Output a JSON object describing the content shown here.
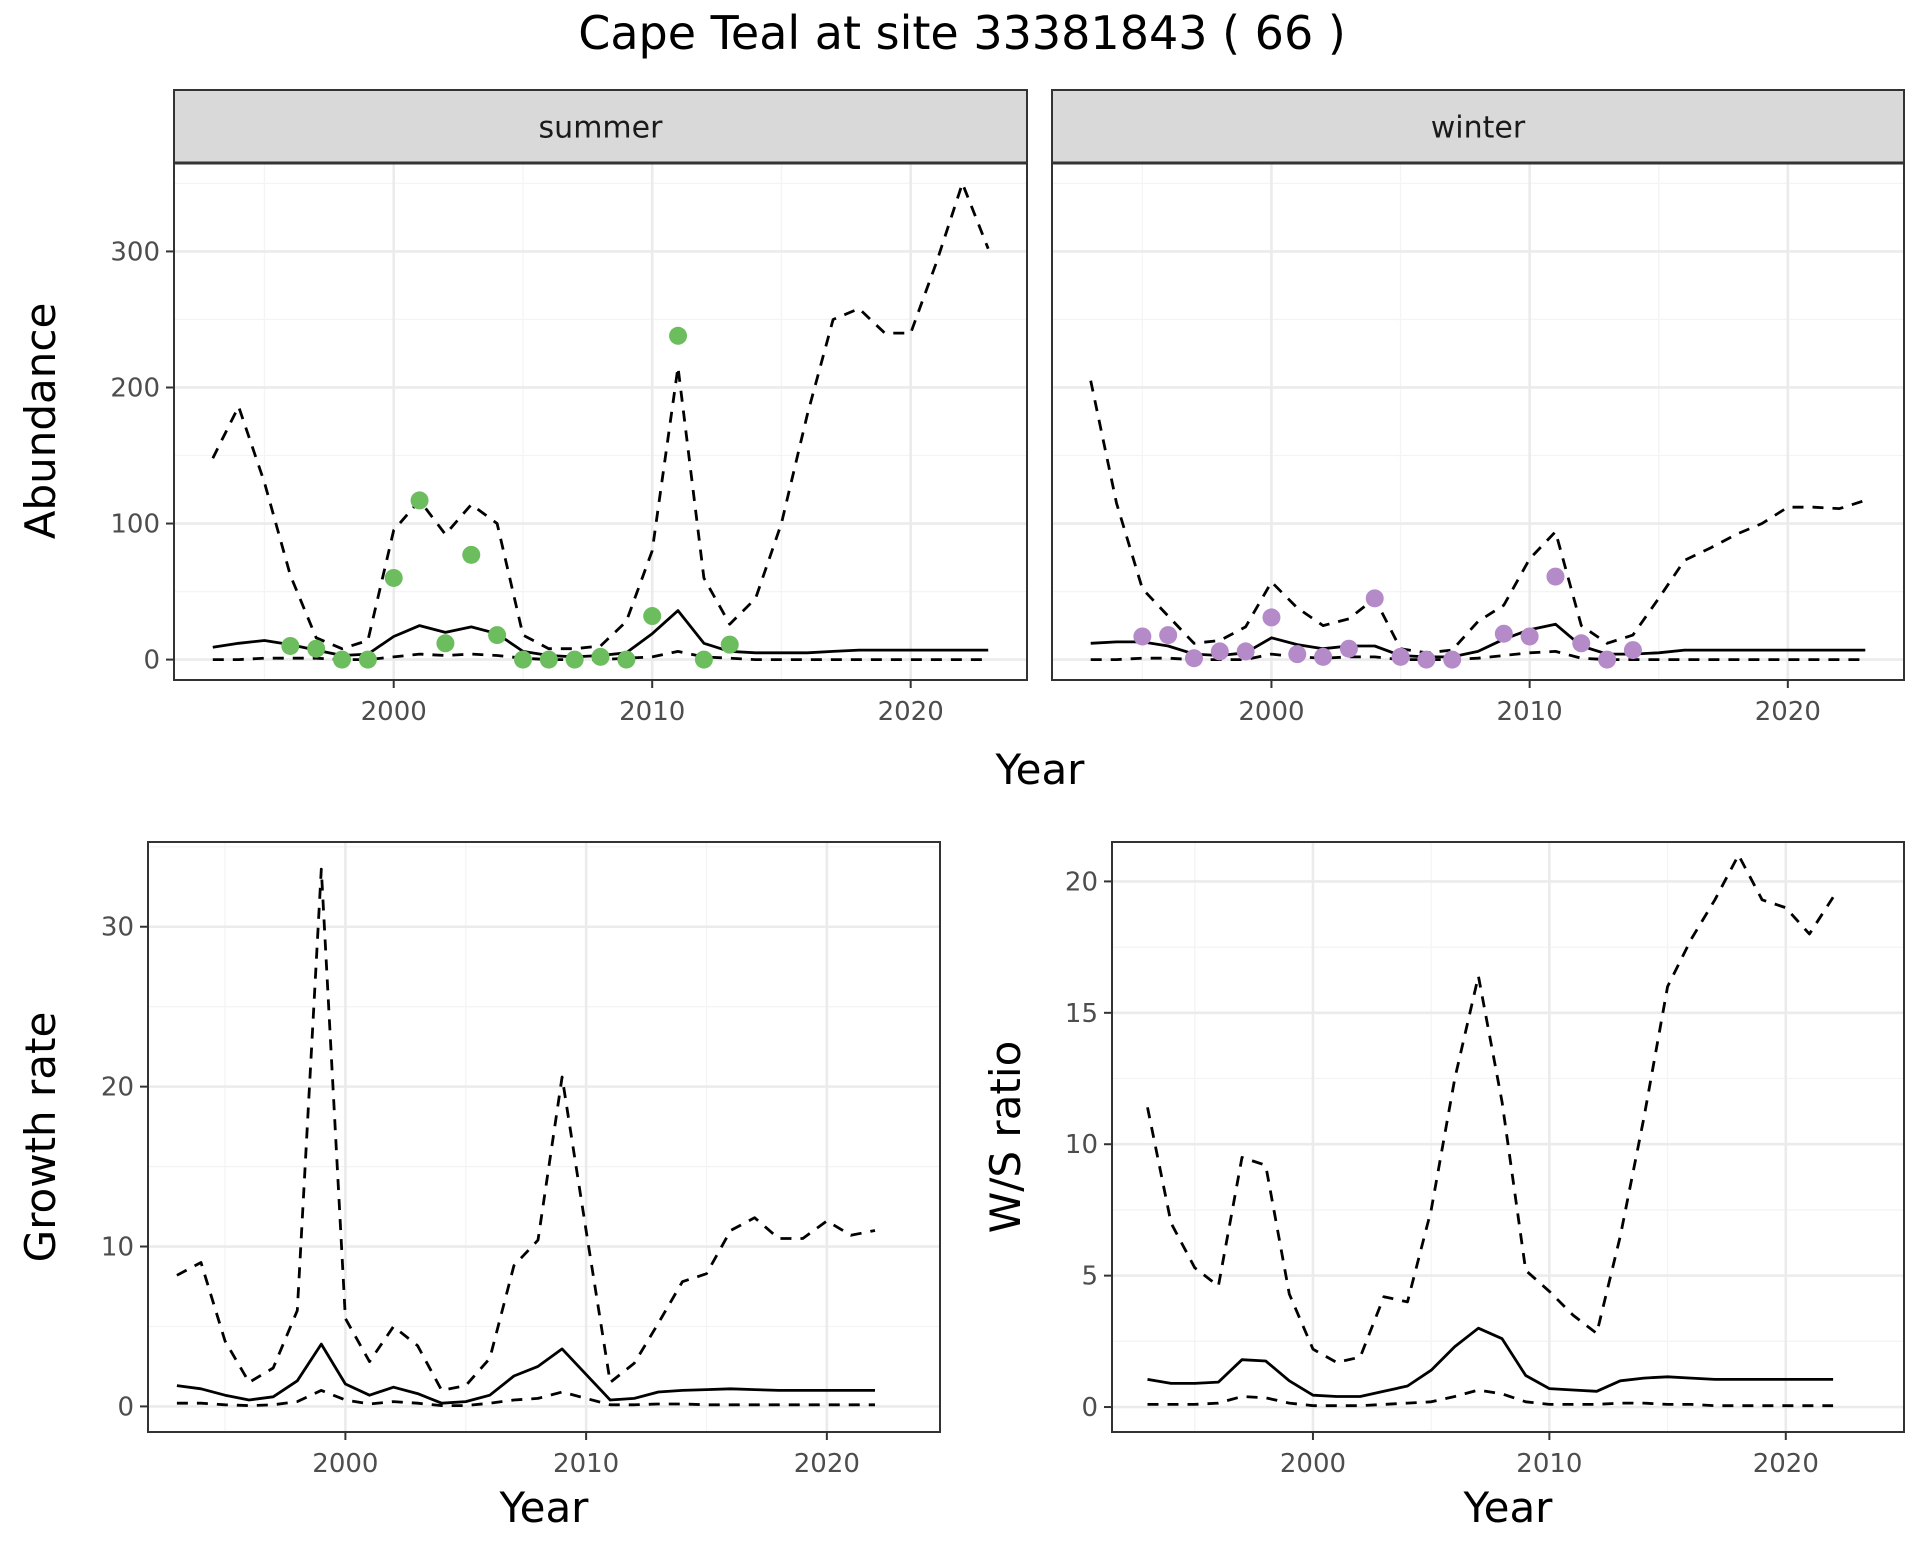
{
  "title": "Cape Teal at site 33381843 ( 66 )",
  "colors": {
    "summer_points": "#6cbd5d",
    "winter_points": "#b48ac8",
    "line": "#000000",
    "grid_major": "#ebebeb",
    "grid_minor": "#f4f4f4",
    "strip_bg": "#d9d9d9",
    "panel_border": "#333333"
  },
  "chart_data": [
    {
      "type": "line",
      "panel": "summer",
      "strip_label": "summer",
      "xlabel": "Year",
      "ylabel": "Abundance",
      "xlim": [
        1991.5,
        2024.5
      ],
      "ylim": [
        -15,
        365
      ],
      "xticks": [
        2000,
        2010,
        2020
      ],
      "yticks": [
        0,
        100,
        200,
        300
      ],
      "grid": true,
      "series": [
        {
          "style": "solid",
          "x": [
            1993,
            1994,
            1995,
            1996,
            1997,
            1998,
            1999,
            2000,
            2001,
            2002,
            2003,
            2004,
            2005,
            2006,
            2007,
            2008,
            2009,
            2010,
            2011,
            2012,
            2013,
            2014,
            2015,
            2016,
            2017,
            2018,
            2019,
            2020,
            2021,
            2022,
            2023
          ],
          "y": [
            9,
            12,
            14,
            11,
            7,
            3,
            4,
            17,
            25,
            20,
            24,
            19,
            6,
            3,
            2,
            3,
            5,
            19,
            36,
            12,
            6,
            5,
            5,
            5,
            6,
            7,
            7,
            7,
            7,
            7,
            7
          ]
        },
        {
          "style": "dashed",
          "x": [
            1993,
            1994,
            1995,
            1996,
            1997,
            1998,
            1999,
            2000,
            2001,
            2002,
            2003,
            2004,
            2005,
            2006,
            2007,
            2008,
            2009,
            2010,
            2011,
            2012,
            2013,
            2014,
            2015,
            2016,
            2017,
            2018,
            2019,
            2020,
            2021,
            2022,
            2023
          ],
          "y": [
            148,
            186,
            130,
            62,
            16,
            8,
            14,
            95,
            117,
            92,
            114,
            100,
            18,
            8,
            8,
            10,
            28,
            80,
            215,
            60,
            26,
            45,
            100,
            180,
            250,
            258,
            240,
            240,
            292,
            350,
            302
          ]
        },
        {
          "style": "dashed",
          "x": [
            1993,
            1994,
            1995,
            1996,
            1997,
            1998,
            1999,
            2000,
            2001,
            2002,
            2003,
            2004,
            2005,
            2006,
            2007,
            2008,
            2009,
            2010,
            2011,
            2012,
            2013,
            2014,
            2015,
            2016,
            2017,
            2018,
            2019,
            2020,
            2021,
            2022,
            2023
          ],
          "y": [
            0,
            0,
            1,
            1,
            1,
            0,
            0,
            2,
            4,
            3,
            4,
            3,
            1,
            0,
            0,
            0,
            1,
            2,
            6,
            2,
            1,
            0,
            0,
            0,
            0,
            0,
            0,
            0,
            0,
            0,
            0
          ]
        },
        {
          "style": "points",
          "x": [
            1996,
            1997,
            1998,
            1999,
            2000,
            2001,
            2002,
            2003,
            2004,
            2005,
            2006,
            2007,
            2008,
            2009,
            2010,
            2011,
            2012,
            2013
          ],
          "y": [
            10,
            8,
            0,
            0,
            60,
            117,
            12,
            77,
            18,
            0,
            0,
            0,
            2,
            0,
            32,
            238,
            0,
            11
          ]
        }
      ]
    },
    {
      "type": "line",
      "panel": "winter",
      "strip_label": "winter",
      "xlabel": "Year",
      "ylabel": "",
      "xlim": [
        1991.5,
        2024.5
      ],
      "ylim": [
        -15,
        365
      ],
      "xticks": [
        2000,
        2010,
        2020
      ],
      "yticks": [
        0,
        100,
        200,
        300
      ],
      "grid": true,
      "series": [
        {
          "style": "solid",
          "x": [
            1993,
            1994,
            1995,
            1996,
            1997,
            1998,
            1999,
            2000,
            2001,
            2002,
            2003,
            2004,
            2005,
            2006,
            2007,
            2008,
            2009,
            2010,
            2011,
            2012,
            2013,
            2014,
            2015,
            2016,
            2017,
            2018,
            2019,
            2020,
            2021,
            2022,
            2023
          ],
          "y": [
            12,
            13,
            13,
            10,
            4,
            3,
            5,
            16,
            11,
            8,
            10,
            10,
            3,
            2,
            2,
            6,
            15,
            22,
            26,
            10,
            4,
            4,
            5,
            7,
            7,
            7,
            7,
            7,
            7,
            7,
            7
          ]
        },
        {
          "style": "dashed",
          "x": [
            1993,
            1994,
            1995,
            1996,
            1997,
            1998,
            1999,
            2000,
            2001,
            2002,
            2003,
            2004,
            2005,
            2006,
            2007,
            2008,
            2009,
            2010,
            2011,
            2012,
            2013,
            2014,
            2015,
            2016,
            2017,
            2018,
            2019,
            2020,
            2021,
            2022,
            2023
          ],
          "y": [
            205,
            115,
            52,
            32,
            12,
            14,
            24,
            57,
            38,
            25,
            30,
            45,
            8,
            5,
            7,
            28,
            40,
            74,
            94,
            25,
            12,
            18,
            45,
            73,
            82,
            92,
            100,
            112,
            112,
            111,
            117
          ]
        },
        {
          "style": "dashed",
          "x": [
            1993,
            1994,
            1995,
            1996,
            1997,
            1998,
            1999,
            2000,
            2001,
            2002,
            2003,
            2004,
            2005,
            2006,
            2007,
            2008,
            2009,
            2010,
            2011,
            2012,
            2013,
            2014,
            2015,
            2016,
            2017,
            2018,
            2019,
            2020,
            2021,
            2022,
            2023
          ],
          "y": [
            0,
            0,
            1,
            1,
            0,
            0,
            0,
            4,
            2,
            1,
            2,
            2,
            0,
            0,
            0,
            1,
            3,
            5,
            6,
            1,
            0,
            0,
            0,
            0,
            0,
            0,
            0,
            0,
            0,
            0,
            0
          ]
        },
        {
          "style": "points",
          "x": [
            1995,
            1996,
            1997,
            1998,
            1999,
            2000,
            2001,
            2002,
            2003,
            2004,
            2005,
            2006,
            2007,
            2009,
            2010,
            2011,
            2012,
            2013,
            2014
          ],
          "y": [
            17,
            18,
            1,
            6,
            6,
            31,
            4,
            2,
            8,
            45,
            2,
            0,
            0,
            19,
            17,
            61,
            12,
            0,
            7
          ]
        }
      ]
    },
    {
      "type": "line",
      "panel": "growth",
      "xlabel": "Year",
      "ylabel": "Growth rate",
      "xlim": [
        1991.8,
        2024.7
      ],
      "ylim": [
        -1.6,
        35.3
      ],
      "xticks": [
        2000,
        2010,
        2020
      ],
      "yticks": [
        0,
        10,
        20,
        30
      ],
      "grid": true,
      "series": [
        {
          "style": "solid",
          "x": [
            1993,
            1994,
            1995,
            1996,
            1997,
            1998,
            1999,
            2000,
            2001,
            2002,
            2003,
            2004,
            2005,
            2006,
            2007,
            2008,
            2009,
            2010,
            2011,
            2012,
            2013,
            2014,
            2015,
            2016,
            2017,
            2018,
            2019,
            2020,
            2021,
            2022
          ],
          "y": [
            1.3,
            1.1,
            0.7,
            0.4,
            0.6,
            1.6,
            3.9,
            1.4,
            0.7,
            1.2,
            0.8,
            0.2,
            0.3,
            0.7,
            1.9,
            2.5,
            3.6,
            2.0,
            0.4,
            0.5,
            0.9,
            1.0,
            1.05,
            1.1,
            1.05,
            1.0,
            1.0,
            1.0,
            1.0,
            1.0
          ]
        },
        {
          "style": "dashed",
          "x": [
            1993,
            1994,
            1995,
            1996,
            1997,
            1998,
            1999,
            2000,
            2001,
            2002,
            2003,
            2004,
            2005,
            2006,
            2007,
            2008,
            2009,
            2010,
            2011,
            2012,
            2013,
            2014,
            2015,
            2016,
            2017,
            2018,
            2019,
            2020,
            2021,
            2022
          ],
          "y": [
            8.2,
            9.0,
            4.1,
            1.5,
            2.4,
            6.0,
            33.6,
            5.5,
            2.8,
            5.0,
            3.8,
            1.0,
            1.3,
            3.0,
            8.8,
            10.4,
            20.6,
            11.0,
            1.5,
            2.7,
            5.2,
            7.8,
            8.3,
            11.0,
            11.8,
            10.5,
            10.5,
            11.6,
            10.7,
            11.0
          ]
        },
        {
          "style": "dashed",
          "x": [
            1993,
            1994,
            1995,
            1996,
            1997,
            1998,
            1999,
            2000,
            2001,
            2002,
            2003,
            2004,
            2005,
            2006,
            2007,
            2008,
            2009,
            2010,
            2011,
            2012,
            2013,
            2014,
            2015,
            2016,
            2017,
            2018,
            2019,
            2020,
            2021,
            2022
          ],
          "y": [
            0.2,
            0.2,
            0.1,
            0.05,
            0.1,
            0.3,
            1.0,
            0.4,
            0.15,
            0.3,
            0.2,
            0.05,
            0.05,
            0.2,
            0.4,
            0.5,
            0.9,
            0.5,
            0.1,
            0.1,
            0.15,
            0.15,
            0.1,
            0.1,
            0.1,
            0.1,
            0.1,
            0.1,
            0.1,
            0.1
          ]
        }
      ]
    },
    {
      "type": "line",
      "panel": "ratio",
      "xlabel": "Year",
      "ylabel": "W/S ratio",
      "xlim": [
        1991.5,
        2025
      ],
      "ylim": [
        -0.95,
        21.5
      ],
      "xticks": [
        2000,
        2010,
        2020
      ],
      "yticks": [
        0,
        5,
        10,
        15,
        20
      ],
      "grid": true,
      "series": [
        {
          "style": "solid",
          "x": [
            1993,
            1994,
            1995,
            1996,
            1997,
            1998,
            1999,
            2000,
            2001,
            2002,
            2003,
            2004,
            2005,
            2006,
            2007,
            2008,
            2009,
            2010,
            2011,
            2012,
            2013,
            2014,
            2015,
            2016,
            2017,
            2018,
            2019,
            2020,
            2021,
            2022
          ],
          "y": [
            1.05,
            0.9,
            0.9,
            0.95,
            1.8,
            1.75,
            1.0,
            0.45,
            0.4,
            0.4,
            0.6,
            0.8,
            1.4,
            2.3,
            3.0,
            2.6,
            1.2,
            0.7,
            0.65,
            0.6,
            1.0,
            1.1,
            1.15,
            1.1,
            1.05,
            1.05,
            1.05,
            1.05,
            1.05,
            1.05
          ]
        },
        {
          "style": "dashed",
          "x": [
            1993,
            1994,
            1995,
            1996,
            1997,
            1998,
            1999,
            2000,
            2001,
            2002,
            2003,
            2004,
            2005,
            2006,
            2007,
            2008,
            2009,
            2010,
            2011,
            2012,
            2013,
            2014,
            2015,
            2016,
            2017,
            2018,
            2019,
            2020,
            2021,
            2022
          ],
          "y": [
            11.4,
            7.0,
            5.3,
            4.6,
            9.5,
            9.2,
            4.3,
            2.2,
            1.7,
            1.9,
            4.2,
            4.0,
            7.5,
            12.5,
            16.4,
            11.6,
            5.2,
            4.4,
            3.5,
            2.8,
            6.5,
            11.0,
            16.0,
            17.8,
            19.3,
            21.0,
            19.3,
            19.0,
            18.0,
            19.4
          ]
        },
        {
          "style": "dashed",
          "x": [
            1993,
            1994,
            1995,
            1996,
            1997,
            1998,
            1999,
            2000,
            2001,
            2002,
            2003,
            2004,
            2005,
            2006,
            2007,
            2008,
            2009,
            2010,
            2011,
            2012,
            2013,
            2014,
            2015,
            2016,
            2017,
            2018,
            2019,
            2020,
            2021,
            2022
          ],
          "y": [
            0.1,
            0.1,
            0.1,
            0.15,
            0.4,
            0.35,
            0.15,
            0.05,
            0.05,
            0.05,
            0.1,
            0.15,
            0.2,
            0.4,
            0.65,
            0.5,
            0.2,
            0.1,
            0.1,
            0.1,
            0.15,
            0.15,
            0.1,
            0.1,
            0.05,
            0.05,
            0.05,
            0.05,
            0.05,
            0.05
          ]
        }
      ]
    }
  ]
}
